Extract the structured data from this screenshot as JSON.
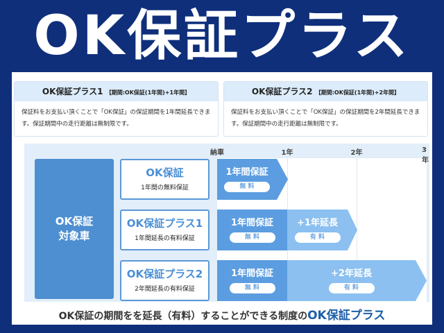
{
  "title": "OK保証プラス",
  "cards": [
    {
      "name": "OK保証プラス1",
      "period": "【期間:OK保証(1年間)+1年間】",
      "text": "保証料をお支払い頂くことで「OK保証」の保証期間を1年間延長できます。保証期間中の走行距離は無制限です。"
    },
    {
      "name": "OK保証プラス2",
      "period": "【期間:OK保証(1年間)+2年間】",
      "text": "保証料をお支払い頂くことで「OK保証」の保証期間を2年間延長できます。保証期間中の走行距離は無制限です。"
    }
  ],
  "timeline": [
    "納車",
    "1年",
    "2年",
    "3年"
  ],
  "target": {
    "line1": "OK保証",
    "line2": "対象車"
  },
  "rows": [
    {
      "name": "OK保証",
      "desc": "1年間の無料保証",
      "seg1": "1年間保証",
      "seg1_tag": "無 料"
    },
    {
      "name": "OK保証プラス1",
      "desc": "1年間延長の有料保証",
      "seg1": "1年間保証",
      "seg1_tag": "無 料",
      "seg2": "+1年延長",
      "seg2_tag": "有 料"
    },
    {
      "name": "OK保証プラス2",
      "desc": "2年間延長の有料保証",
      "seg1": "1年間保証",
      "seg1_tag": "無 料",
      "seg2": "+2年延長",
      "seg2_tag": "有 料"
    }
  ],
  "caption": {
    "text": "OK保証の期間をを延長（有料）することができる制度の",
    "strong": "OK保証プラス"
  },
  "colors": {
    "background": "#0f2f7b",
    "free": "#5b9de0",
    "paid": "#8cc0f0",
    "accent": "#4e8fd1"
  }
}
